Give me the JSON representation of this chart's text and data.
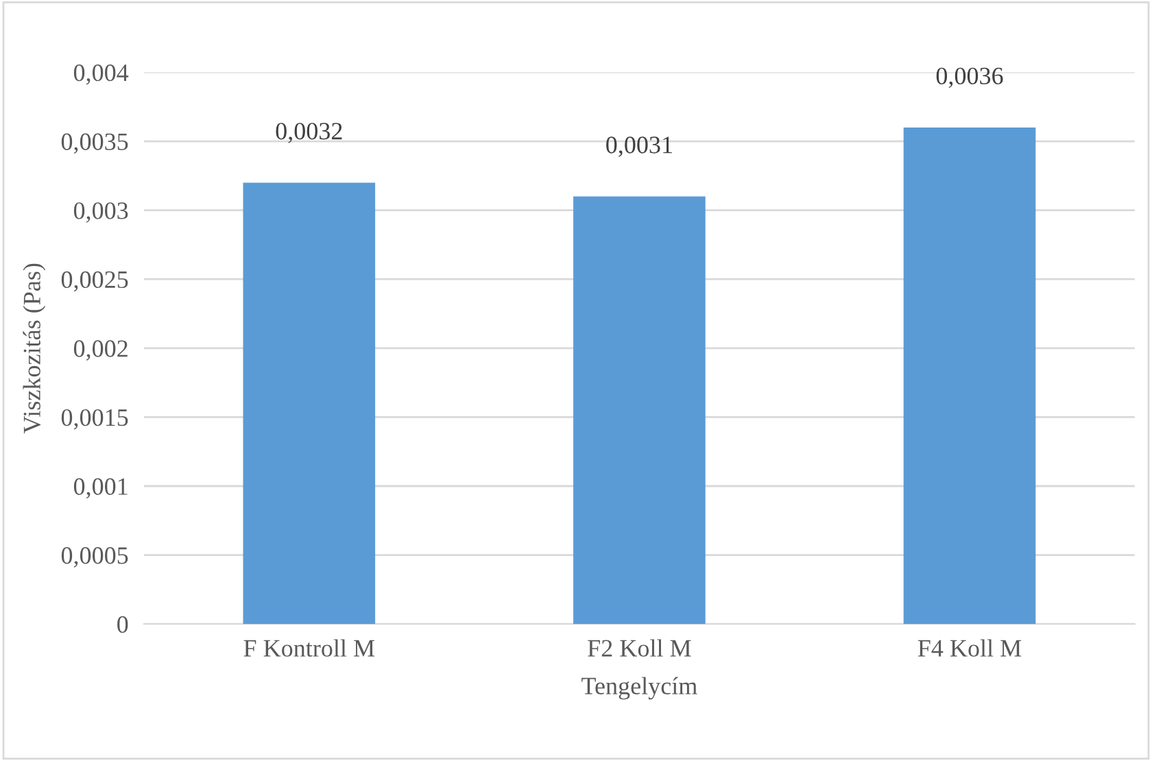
{
  "chart_data": {
    "type": "bar",
    "xlabel": "Tengelycím",
    "ylabel": "Viszkozitás (Pas)",
    "categories": [
      "F Kontroll M",
      "F2 Koll M",
      "F4 Koll M"
    ],
    "values": [
      0.0032,
      0.0031,
      0.0036
    ],
    "color": "#5b9bd5",
    "value_labels": [
      "0,0032",
      "0,0031",
      "0,0036"
    ],
    "ylim": [
      0,
      0.004
    ],
    "yticks": [
      {
        "value": 0,
        "label": "0"
      },
      {
        "value": 0.0005,
        "label": "0,0005"
      },
      {
        "value": 0.001,
        "label": "0,001"
      },
      {
        "value": 0.0015,
        "label": "0,0015"
      },
      {
        "value": 0.002,
        "label": "0,002"
      },
      {
        "value": 0.0025,
        "label": "0,0025"
      },
      {
        "value": 0.003,
        "label": "0,003"
      },
      {
        "value": 0.0035,
        "label": "0,0035"
      },
      {
        "value": 0.004,
        "label": "0,004"
      }
    ],
    "grid": "y",
    "legend": false
  }
}
